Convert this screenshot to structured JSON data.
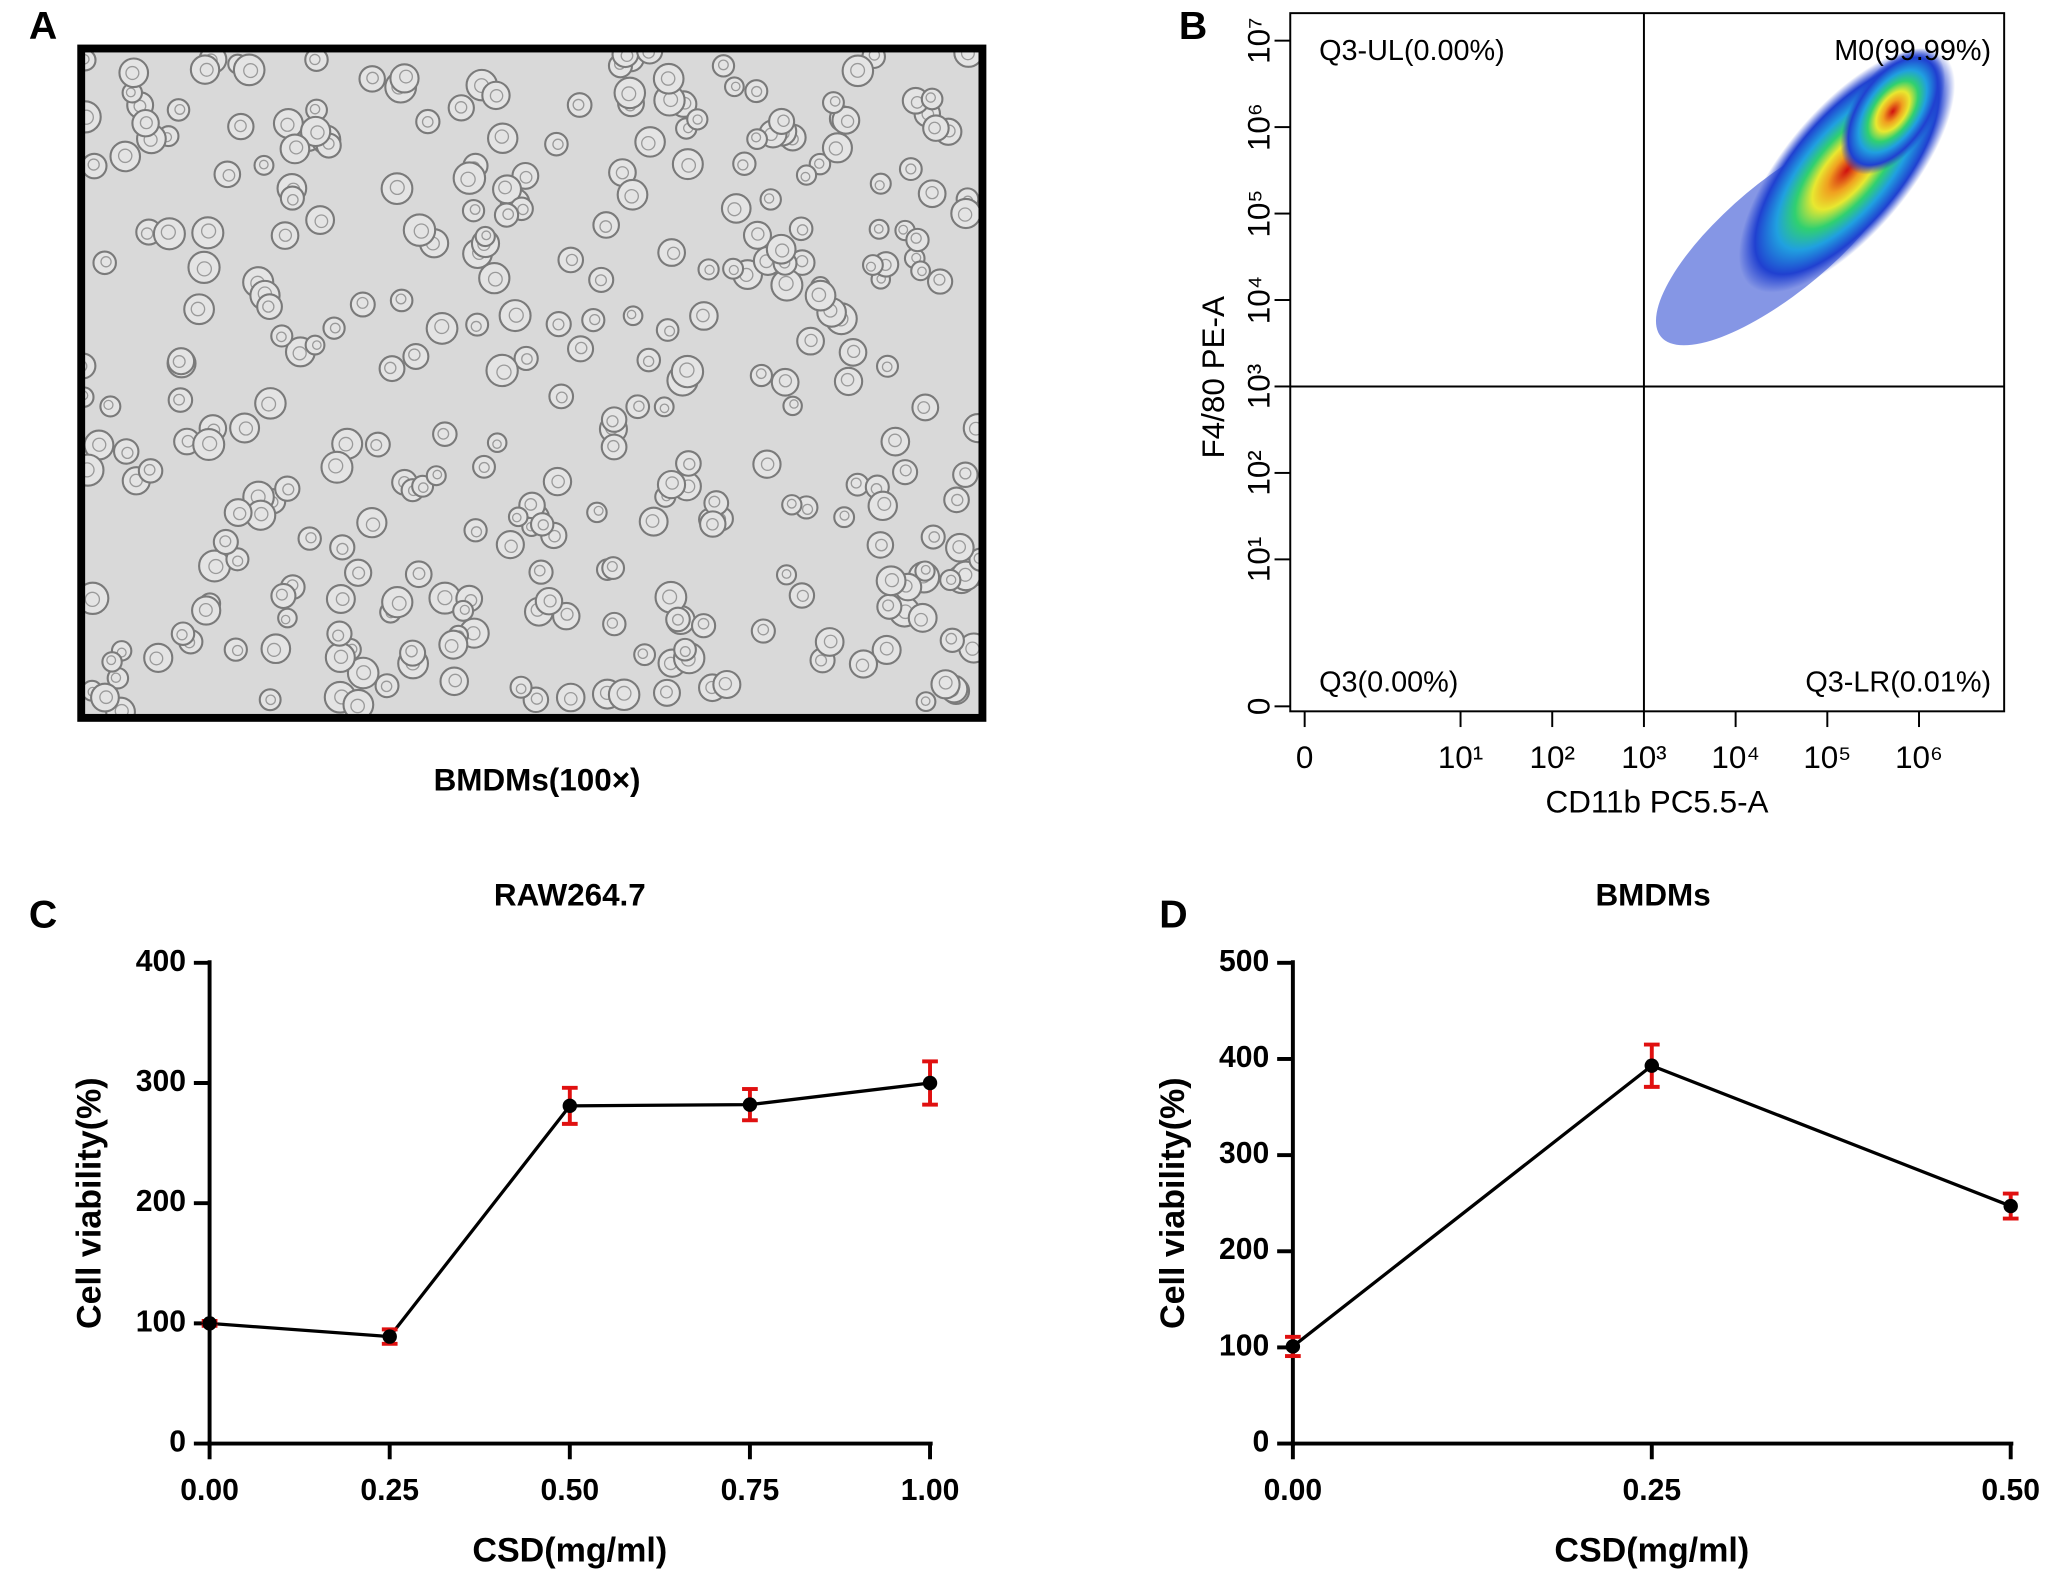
{
  "panel_a": {
    "label": "A",
    "caption": "BMDMs(100×)"
  },
  "chart_data": [
    {
      "type": "scatter",
      "label": "B",
      "xlabel": "CD11b PC5.5-A",
      "ylabel": "F4/80 PE-A",
      "xscale": "log",
      "yscale": "log",
      "xlim": [
        0,
        8500000
      ],
      "ylim": [
        0,
        10000000
      ],
      "xticks": [
        0,
        {
          "value": 10,
          "label": "10¹"
        },
        {
          "value": 100,
          "label": "10²"
        },
        {
          "value": 1000,
          "label": "10³"
        },
        {
          "value": 10000,
          "label": "10⁴"
        },
        {
          "value": 100000,
          "label": "10⁵"
        },
        {
          "value": 1000000,
          "label": "10⁶"
        }
      ],
      "yticks": [
        0,
        {
          "value": 10,
          "label": "10¹"
        },
        {
          "value": 100,
          "label": "10²"
        },
        {
          "value": 1000,
          "label": "10³"
        },
        {
          "value": 10000,
          "label": "10⁴"
        },
        {
          "value": 100000,
          "label": "10⁵"
        },
        {
          "value": 1000000,
          "label": "10⁶"
        },
        {
          "value": 10000000,
          "label": "10⁷"
        }
      ],
      "gates": {
        "x": 1000,
        "y": 1000
      },
      "annotations": [
        "Q3-UL(0.00%)",
        "M0(99.99%)",
        "Q3(0.00%)",
        "Q3-LR(0.01%)"
      ]
    },
    {
      "type": "line",
      "label": "C",
      "title": "RAW264.7",
      "xlabel": "CSD(mg/ml)",
      "ylabel": "Cell viability(%)",
      "x": [
        0,
        0.25,
        0.5,
        0.75,
        1.0
      ],
      "values": [
        100,
        89,
        281,
        282,
        300
      ],
      "errors": [
        2,
        6,
        15,
        13,
        18
      ],
      "color": "#000000",
      "error_color": "#e01010",
      "xlim": [
        0,
        1.0
      ],
      "xticks": [
        {
          "value": 0,
          "label": "0.00"
        },
        {
          "value": 0.25,
          "label": "0.25"
        },
        {
          "value": 0.5,
          "label": "0.50"
        },
        {
          "value": 0.75,
          "label": "0.75"
        },
        {
          "value": 1.0,
          "label": "1.00"
        }
      ],
      "ylim": [
        0,
        400
      ],
      "yticks": [
        0,
        100,
        200,
        300,
        400
      ]
    },
    {
      "type": "line",
      "label": "D",
      "title": "BMDMs",
      "xlabel": "CSD(mg/ml)",
      "ylabel": "Cell viability(%)",
      "x": [
        0,
        0.25,
        0.5
      ],
      "values": [
        101,
        393,
        247
      ],
      "errors": [
        10,
        22,
        13
      ],
      "color": "#000000",
      "error_color": "#e01010",
      "xlim": [
        0,
        0.5
      ],
      "xticks": [
        {
          "value": 0,
          "label": "0.00"
        },
        {
          "value": 0.25,
          "label": "0.25"
        },
        {
          "value": 0.5,
          "label": "0.50"
        }
      ],
      "ylim": [
        0,
        500
      ],
      "yticks": [
        0,
        100,
        200,
        300,
        400,
        500
      ]
    }
  ]
}
